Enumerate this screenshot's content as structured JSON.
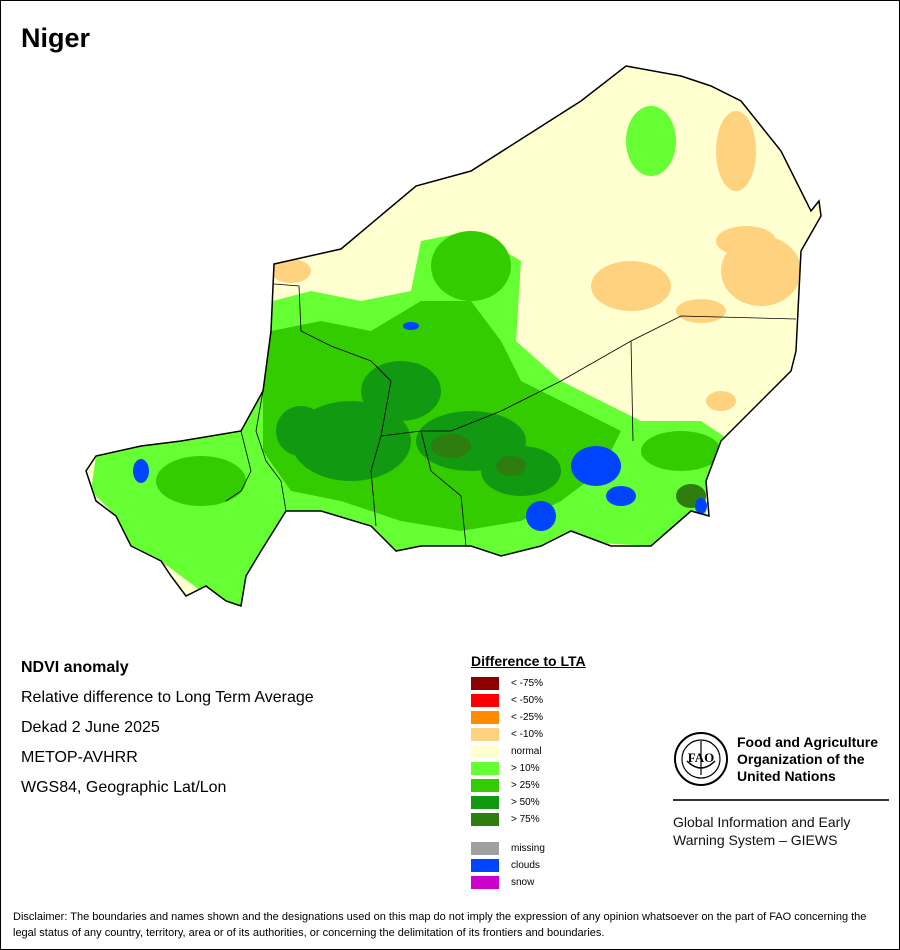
{
  "map": {
    "title": "Niger"
  },
  "info": {
    "lines": [
      "NDVI anomaly",
      "Relative difference to Long Term Average",
      "Dekad 2 June 2025",
      "METOP-AVHRR",
      "WGS84, Geographic Lat/Lon"
    ]
  },
  "legend": {
    "title": "Difference to LTA",
    "items": [
      {
        "label": "< -75%",
        "color": "#8b0000"
      },
      {
        "label": "< -50%",
        "color": "#ff0000"
      },
      {
        "label": "< -25%",
        "color": "#ff8c00"
      },
      {
        "label": "< -10%",
        "color": "#ffd27f"
      },
      {
        "label": "normal",
        "color": "#ffffd0"
      },
      {
        "label": "> 10%",
        "color": "#66ff33"
      },
      {
        "label": "> 25%",
        "color": "#33cc00"
      },
      {
        "label": "> 50%",
        "color": "#119911"
      },
      {
        "label": "> 75%",
        "color": "#2e7d0e"
      }
    ],
    "extra": [
      {
        "label": "missing",
        "color": "#a0a0a0"
      },
      {
        "label": "clouds",
        "color": "#0044ff"
      },
      {
        "label": "snow",
        "color": "#cc00cc"
      }
    ]
  },
  "fao": {
    "logo_text": "FAO",
    "org_lines": [
      "Food and Agriculture",
      "Organization of the",
      "United Nations"
    ],
    "giews_lines": [
      "Global Information and Early",
      "Warning System – GIEWS"
    ]
  },
  "disclaimer": "Disclaimer: The boundaries and names shown and the designations used on this map do not imply the expression of any opinion whatsoever on the part of FAO concerning the legal status of any country, territory, area or of its authorities, or concerning the delimitation of its frontiers and boundaries."
}
